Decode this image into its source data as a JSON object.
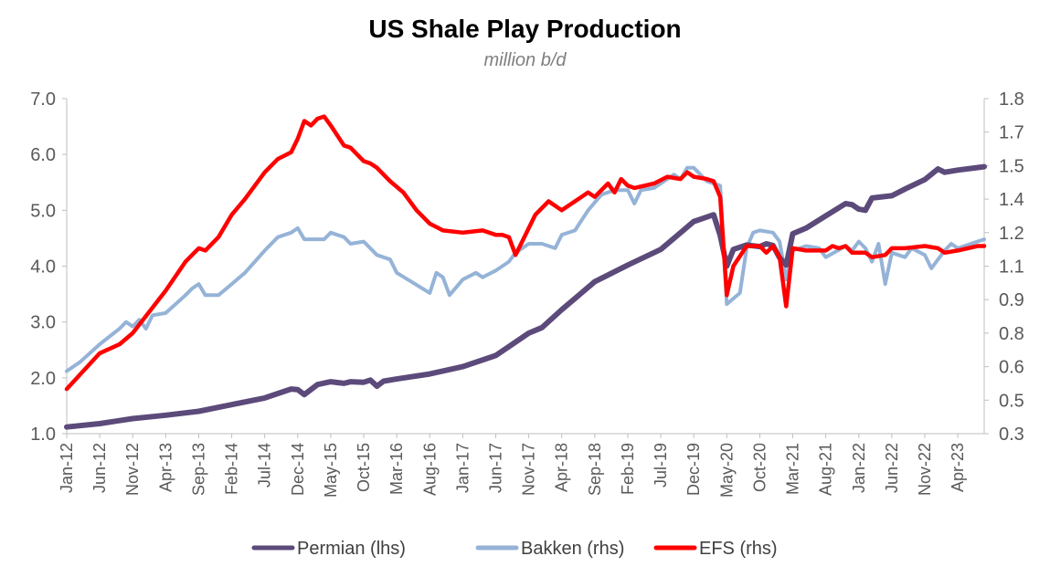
{
  "chart_data": {
    "type": "line",
    "title": "US Shale Play Production",
    "subtitle": "million b/d",
    "x_range": [
      "Jan-12",
      "Aug-23"
    ],
    "x_tick_labels": [
      "Jan-12",
      "Jun-12",
      "Nov-12",
      "Apr-13",
      "Sep-13",
      "Feb-14",
      "Jul-14",
      "Dec-14",
      "May-15",
      "Oct-15",
      "Mar-16",
      "Aug-16",
      "Jan-17",
      "Jun-17",
      "Nov-17",
      "Apr-18",
      "Sep-18",
      "Feb-19",
      "Jul-19",
      "Dec-19",
      "May-20",
      "Oct-20",
      "Mar-21",
      "Aug-21",
      "Jan-22",
      "Jun-22",
      "Nov-22",
      "Apr-23"
    ],
    "y_left": {
      "min": 1.0,
      "max": 7.0,
      "ticks": [
        "1.0",
        "2.0",
        "3.0",
        "4.0",
        "5.0",
        "6.0",
        "7.0"
      ]
    },
    "y_right": {
      "min": 0.3,
      "max": 1.8,
      "ticks": [
        "0.3",
        "0.5",
        "0.6",
        "0.8",
        "0.9",
        "1.1",
        "1.2",
        "1.4",
        "1.5",
        "1.7",
        "1.8"
      ]
    },
    "legend_position": "bottom",
    "series": [
      {
        "name": "Permian (lhs)",
        "axis": "left",
        "color": "#5b4a7a",
        "points": [
          [
            "Jan-12",
            1.12
          ],
          [
            "Jun-12",
            1.18
          ],
          [
            "Nov-12",
            1.27
          ],
          [
            "Apr-13",
            1.33
          ],
          [
            "Sep-13",
            1.4
          ],
          [
            "Feb-14",
            1.52
          ],
          [
            "Jul-14",
            1.64
          ],
          [
            "Nov-14",
            1.8
          ],
          [
            "Dec-14",
            1.79
          ],
          [
            "Jan-15",
            1.7
          ],
          [
            "Mar-15",
            1.88
          ],
          [
            "May-15",
            1.93
          ],
          [
            "Jul-15",
            1.9
          ],
          [
            "Aug-15",
            1.93
          ],
          [
            "Oct-15",
            1.92
          ],
          [
            "Nov-15",
            1.96
          ],
          [
            "Dec-15",
            1.85
          ],
          [
            "Jan-16",
            1.94
          ],
          [
            "Mar-16",
            1.98
          ],
          [
            "Aug-16",
            2.07
          ],
          [
            "Jan-17",
            2.2
          ],
          [
            "Jun-17",
            2.4
          ],
          [
            "Nov-17",
            2.8
          ],
          [
            "Jan-18",
            2.9
          ],
          [
            "Apr-18",
            3.22
          ],
          [
            "Sep-18",
            3.72
          ],
          [
            "Feb-19",
            4.02
          ],
          [
            "Jul-19",
            4.3
          ],
          [
            "Dec-19",
            4.8
          ],
          [
            "Feb-20",
            4.88
          ],
          [
            "Mar-20",
            4.92
          ],
          [
            "Apr-20",
            4.55
          ],
          [
            "May-20",
            4.0
          ],
          [
            "Jun-20",
            4.3
          ],
          [
            "Aug-20",
            4.38
          ],
          [
            "Oct-20",
            4.35
          ],
          [
            "Nov-20",
            4.4
          ],
          [
            "Dec-20",
            4.37
          ],
          [
            "Jan-21",
            4.15
          ],
          [
            "Feb-21",
            4.02
          ],
          [
            "Mar-21",
            4.58
          ],
          [
            "May-21",
            4.68
          ],
          [
            "Aug-21",
            4.9
          ],
          [
            "Nov-21",
            5.12
          ],
          [
            "Dec-21",
            5.1
          ],
          [
            "Jan-22",
            5.02
          ],
          [
            "Feb-22",
            5.0
          ],
          [
            "Mar-22",
            5.22
          ],
          [
            "Jun-22",
            5.26
          ],
          [
            "Aug-22",
            5.38
          ],
          [
            "Nov-22",
            5.55
          ],
          [
            "Jan-23",
            5.74
          ],
          [
            "Feb-23",
            5.68
          ],
          [
            "Apr-23",
            5.72
          ],
          [
            "Aug-23",
            5.78
          ]
        ]
      },
      {
        "name": "Bakken (rhs)",
        "axis": "right",
        "color": "#95b3d7",
        "points": [
          [
            "Jan-12",
            0.58
          ],
          [
            "Mar-12",
            0.62
          ],
          [
            "Jun-12",
            0.7
          ],
          [
            "Sep-12",
            0.77
          ],
          [
            "Oct-12",
            0.8
          ],
          [
            "Nov-12",
            0.78
          ],
          [
            "Dec-12",
            0.81
          ],
          [
            "Jan-13",
            0.77
          ],
          [
            "Feb-13",
            0.83
          ],
          [
            "Apr-13",
            0.84
          ],
          [
            "Jul-13",
            0.92
          ],
          [
            "Aug-13",
            0.95
          ],
          [
            "Sep-13",
            0.97
          ],
          [
            "Oct-13",
            0.92
          ],
          [
            "Dec-13",
            0.92
          ],
          [
            "Feb-14",
            0.97
          ],
          [
            "Apr-14",
            1.02
          ],
          [
            "Jul-14",
            1.12
          ],
          [
            "Sep-14",
            1.18
          ],
          [
            "Nov-14",
            1.2
          ],
          [
            "Dec-14",
            1.22
          ],
          [
            "Jan-15",
            1.17
          ],
          [
            "Apr-15",
            1.17
          ],
          [
            "May-15",
            1.2
          ],
          [
            "Jul-15",
            1.18
          ],
          [
            "Aug-15",
            1.15
          ],
          [
            "Oct-15",
            1.16
          ],
          [
            "Dec-15",
            1.1
          ],
          [
            "Feb-16",
            1.08
          ],
          [
            "Mar-16",
            1.02
          ],
          [
            "Aug-16",
            0.93
          ],
          [
            "Sep-16",
            1.02
          ],
          [
            "Oct-16",
            1.0
          ],
          [
            "Nov-16",
            0.92
          ],
          [
            "Jan-17",
            0.99
          ],
          [
            "Mar-17",
            1.02
          ],
          [
            "Apr-17",
            1.0
          ],
          [
            "Jun-17",
            1.03
          ],
          [
            "Aug-17",
            1.07
          ],
          [
            "Sep-17",
            1.11
          ],
          [
            "Nov-17",
            1.15
          ],
          [
            "Jan-18",
            1.15
          ],
          [
            "Mar-18",
            1.13
          ],
          [
            "Apr-18",
            1.19
          ],
          [
            "Jun-18",
            1.21
          ],
          [
            "Aug-18",
            1.3
          ],
          [
            "Oct-18",
            1.37
          ],
          [
            "Dec-18",
            1.39
          ],
          [
            "Feb-19",
            1.39
          ],
          [
            "Mar-19",
            1.33
          ],
          [
            "Apr-19",
            1.39
          ],
          [
            "Jun-19",
            1.4
          ],
          [
            "Sep-19",
            1.46
          ],
          [
            "Oct-19",
            1.44
          ],
          [
            "Nov-19",
            1.49
          ],
          [
            "Dec-19",
            1.49
          ],
          [
            "Jan-20",
            1.46
          ],
          [
            "Feb-20",
            1.43
          ],
          [
            "Apr-20",
            1.41
          ],
          [
            "May-20",
            0.88
          ],
          [
            "Jul-20",
            0.93
          ],
          [
            "Aug-20",
            1.13
          ],
          [
            "Sep-20",
            1.2
          ],
          [
            "Oct-20",
            1.21
          ],
          [
            "Dec-20",
            1.2
          ],
          [
            "Jan-21",
            1.16
          ],
          [
            "Feb-21",
            0.99
          ],
          [
            "Mar-21",
            1.12
          ],
          [
            "May-21",
            1.14
          ],
          [
            "Jul-21",
            1.13
          ],
          [
            "Aug-21",
            1.09
          ],
          [
            "Nov-21",
            1.14
          ],
          [
            "Dec-21",
            1.12
          ],
          [
            "Jan-22",
            1.16
          ],
          [
            "Feb-22",
            1.13
          ],
          [
            "Mar-22",
            1.07
          ],
          [
            "Apr-22",
            1.15
          ],
          [
            "May-22",
            0.97
          ],
          [
            "Jun-22",
            1.11
          ],
          [
            "Aug-22",
            1.09
          ],
          [
            "Sep-22",
            1.13
          ],
          [
            "Nov-22",
            1.1
          ],
          [
            "Dec-22",
            1.04
          ],
          [
            "Feb-23",
            1.12
          ],
          [
            "Mar-23",
            1.15
          ],
          [
            "Apr-23",
            1.13
          ],
          [
            "Aug-23",
            1.17
          ]
        ]
      },
      {
        "name": "EFS (rhs)",
        "axis": "right",
        "color": "#ff0000",
        "points": [
          [
            "Jan-12",
            0.5
          ],
          [
            "Jun-12",
            0.66
          ],
          [
            "Sep-12",
            0.7
          ],
          [
            "Nov-12",
            0.75
          ],
          [
            "Apr-13",
            0.94
          ],
          [
            "Jul-13",
            1.07
          ],
          [
            "Sep-13",
            1.13
          ],
          [
            "Oct-13",
            1.12
          ],
          [
            "Dec-13",
            1.18
          ],
          [
            "Feb-14",
            1.28
          ],
          [
            "Apr-14",
            1.35
          ],
          [
            "Jul-14",
            1.47
          ],
          [
            "Sep-14",
            1.53
          ],
          [
            "Nov-14",
            1.56
          ],
          [
            "Dec-14",
            1.62
          ],
          [
            "Jan-15",
            1.7
          ],
          [
            "Feb-15",
            1.68
          ],
          [
            "Mar-15",
            1.71
          ],
          [
            "Apr-15",
            1.72
          ],
          [
            "May-15",
            1.68
          ],
          [
            "Jul-15",
            1.59
          ],
          [
            "Aug-15",
            1.58
          ],
          [
            "Oct-15",
            1.52
          ],
          [
            "Nov-15",
            1.51
          ],
          [
            "Dec-15",
            1.49
          ],
          [
            "Feb-16",
            1.43
          ],
          [
            "Apr-16",
            1.38
          ],
          [
            "Jun-16",
            1.3
          ],
          [
            "Aug-16",
            1.24
          ],
          [
            "Oct-16",
            1.21
          ],
          [
            "Jan-17",
            1.2
          ],
          [
            "Apr-17",
            1.21
          ],
          [
            "Jun-17",
            1.19
          ],
          [
            "Jul-17",
            1.19
          ],
          [
            "Aug-17",
            1.18
          ],
          [
            "Sep-17",
            1.1
          ],
          [
            "Nov-17",
            1.22
          ],
          [
            "Dec-17",
            1.28
          ],
          [
            "Feb-18",
            1.34
          ],
          [
            "Apr-18",
            1.3
          ],
          [
            "Jun-18",
            1.34
          ],
          [
            "Aug-18",
            1.38
          ],
          [
            "Sep-18",
            1.36
          ],
          [
            "Nov-18",
            1.42
          ],
          [
            "Dec-18",
            1.38
          ],
          [
            "Jan-19",
            1.44
          ],
          [
            "Feb-19",
            1.41
          ],
          [
            "Mar-19",
            1.4
          ],
          [
            "Jun-19",
            1.42
          ],
          [
            "Aug-19",
            1.45
          ],
          [
            "Oct-19",
            1.44
          ],
          [
            "Nov-19",
            1.47
          ],
          [
            "Dec-19",
            1.45
          ],
          [
            "Feb-20",
            1.44
          ],
          [
            "Mar-20",
            1.43
          ],
          [
            "Apr-20",
            1.36
          ],
          [
            "May-20",
            0.92
          ],
          [
            "Jun-20",
            1.05
          ],
          [
            "Aug-20",
            1.14
          ],
          [
            "Oct-20",
            1.14
          ],
          [
            "Nov-20",
            1.11
          ],
          [
            "Dec-20",
            1.14
          ],
          [
            "Jan-21",
            1.09
          ],
          [
            "Feb-21",
            0.87
          ],
          [
            "Mar-21",
            1.13
          ],
          [
            "May-21",
            1.12
          ],
          [
            "Aug-21",
            1.12
          ],
          [
            "Sep-21",
            1.14
          ],
          [
            "Oct-21",
            1.13
          ],
          [
            "Nov-21",
            1.14
          ],
          [
            "Dec-21",
            1.11
          ],
          [
            "Feb-22",
            1.11
          ],
          [
            "Mar-22",
            1.09
          ],
          [
            "May-22",
            1.1
          ],
          [
            "Jun-22",
            1.13
          ],
          [
            "Aug-22",
            1.13
          ],
          [
            "Nov-22",
            1.14
          ],
          [
            "Jan-23",
            1.13
          ],
          [
            "Feb-23",
            1.11
          ],
          [
            "Apr-23",
            1.12
          ],
          [
            "Jul-23",
            1.14
          ],
          [
            "Aug-23",
            1.14
          ]
        ]
      }
    ]
  }
}
